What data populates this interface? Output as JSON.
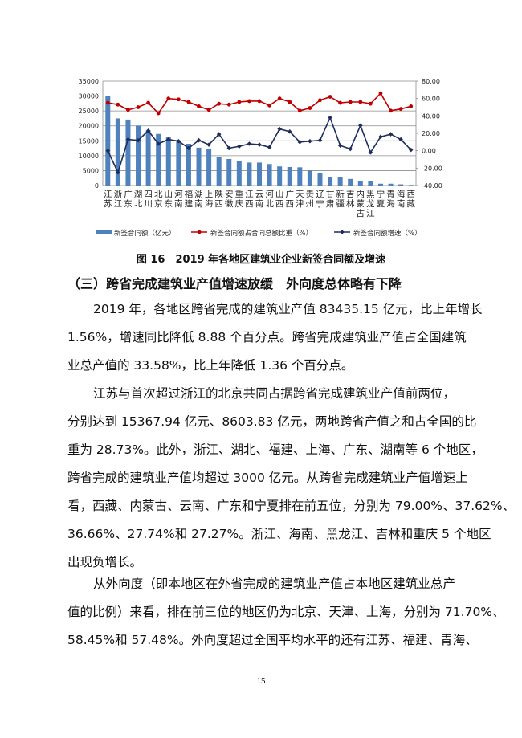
{
  "chart_data": {
    "type": "bar+line",
    "categories": [
      "江苏",
      "浙江",
      "广东",
      "湖北",
      "四川",
      "北京",
      "山东",
      "河南",
      "福建",
      "湖南",
      "上海",
      "陕西",
      "安徽",
      "重庆",
      "江西",
      "云南",
      "河北",
      "山西",
      "广西",
      "天津",
      "贵州",
      "辽宁",
      "甘肃",
      "新疆",
      "吉林",
      "内蒙古",
      "黑龙江",
      "宁夏",
      "青海",
      "海南",
      "西藏"
    ],
    "series": [
      {
        "name": "新签合同额（亿元）",
        "type": "bar",
        "axis": "left",
        "color": "#4f81bd",
        "values": [
          30000,
          22500,
          22100,
          20100,
          18400,
          17300,
          16400,
          15000,
          14000,
          12700,
          12400,
          9700,
          8900,
          8200,
          7700,
          7700,
          7200,
          6400,
          6200,
          6100,
          5000,
          4300,
          2800,
          2800,
          2200,
          1600,
          1400,
          600,
          600,
          400,
          200
        ]
      },
      {
        "name": "新签合同额占合同总额比重（%）",
        "type": "line",
        "axis": "right",
        "color": "#c00000",
        "values": [
          55,
          53,
          47,
          50,
          55,
          43,
          60,
          59,
          56,
          51,
          47,
          54,
          53,
          56,
          57,
          57,
          52,
          60,
          56,
          46,
          49,
          58,
          62,
          55,
          56,
          56,
          54,
          66,
          46,
          48,
          51
        ]
      },
      {
        "name": "新签合同额增速（%）",
        "type": "line",
        "axis": "right",
        "color": "#1f2d5c",
        "values": [
          0,
          -25,
          13,
          12,
          23,
          8,
          13,
          11,
          3,
          12,
          7,
          19,
          3,
          5,
          8,
          7,
          4,
          25,
          22,
          10,
          11,
          12,
          38,
          6,
          2,
          29,
          -2,
          16,
          19,
          13,
          1
        ]
      }
    ],
    "left_axis": {
      "range": [
        0,
        35000
      ],
      "ticks": [
        "0",
        "5000",
        "10000",
        "15000",
        "20000",
        "25000",
        "30000",
        "35000"
      ]
    },
    "right_axis": {
      "range": [
        -40,
        80
      ],
      "ticks": [
        "-40.00",
        "-20.00",
        "0.00",
        "20.00",
        "40.00",
        "60.00",
        "80.00"
      ]
    },
    "grid": true,
    "legend_placement": "bottom"
  },
  "caption": "图 16　2019 年各地区建筑业企业新签合同额及增速",
  "heading": "（三）跨省完成建筑业产值增速放缓　外向度总体略有下降",
  "paragraphs": [
    [
      "2019 年，各地区跨省完成的建筑业产值 83435.15 亿元，比上年增长",
      "1.56%，增速同比降低 8.88 个百分点。跨省完成建筑业产值占全国建筑",
      "业总产值的 33.58%，比上年降低 1.36 个百分点。"
    ],
    [
      "江苏与首次超过浙江的北京共同占据跨省完成建筑业产值前两位，",
      "分别达到 15367.94 亿元、8603.83 亿元，两地跨省产值之和占全国的比",
      "重为 28.73%。此外，浙江、湖北、福建、上海、广东、湖南等 6 个地区，",
      "跨省完成的建筑业产值均超过 3000 亿元。从跨省完成建筑业产值增速上",
      "看，西藏、内蒙古、云南、广东和宁夏排在前五位，分别为 79.00%、37.62%、",
      "36.66%、27.74%和 27.27%。浙江、海南、黑龙江、吉林和重庆 5 个地区",
      "出现负增长。"
    ],
    [
      "从外向度（即本地区在外省完成的建筑业产值占本地区建筑业总产",
      "值的比例）来看，排在前三位的地区仍为北京、天津、上海，分别为 71.70%、",
      "58.45%和 57.48%。外向度超过全国平均水平的还有江苏、福建、青海、"
    ]
  ],
  "page_number": "15"
}
